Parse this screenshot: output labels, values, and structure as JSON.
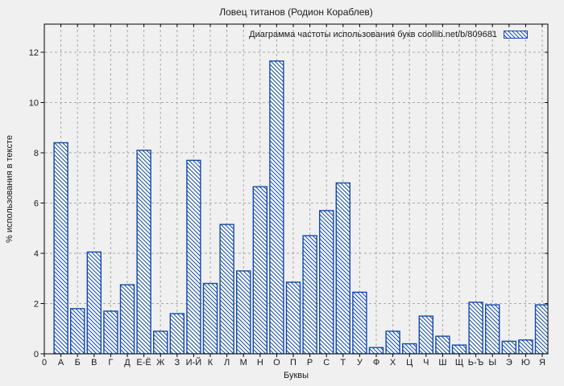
{
  "figure": {
    "background": "#f0f0f0"
  },
  "chart_data": {
    "type": "bar",
    "title": "Ловец титанов (Родион Кораблев)",
    "legend": "Диаграмма частоты использования букв coollib.net/b/809681",
    "xlabel": "Буквы",
    "ylabel": "% использования в тексте",
    "categories": [
      "0",
      "А",
      "Б",
      "В",
      "Г",
      "Д",
      "Е-Ё",
      "Ж",
      "З",
      "И-Й",
      "К",
      "Л",
      "М",
      "Н",
      "О",
      "П",
      "Р",
      "С",
      "Т",
      "У",
      "Ф",
      "Х",
      "Ц",
      "Ч",
      "Ш",
      "Щ",
      "Ь-Ъ",
      "Ы",
      "Э",
      "Ю",
      "Я"
    ],
    "values": [
      0,
      8.4,
      1.8,
      4.05,
      1.7,
      2.75,
      8.1,
      0.9,
      1.6,
      7.7,
      2.8,
      5.15,
      3.3,
      6.65,
      11.65,
      2.85,
      4.7,
      5.7,
      6.8,
      2.45,
      0.25,
      0.9,
      0.4,
      1.5,
      0.7,
      0.35,
      2.05,
      1.95,
      0.5,
      0.55,
      1.95
    ],
    "yticks": [
      0,
      2,
      4,
      6,
      8,
      10,
      12
    ],
    "ylim": [
      0,
      13.1
    ],
    "grid": true,
    "grid_style": "dashed",
    "legend_position": "top-right-inside",
    "hatch": "diagonal-backslash",
    "colors": {
      "bar_stroke": "#1048ae",
      "bar_fill": "#ffffff",
      "grid": "#a8a8a8",
      "axis": "#000000",
      "text": "#1a1a1a",
      "background": "#f0f0f0"
    }
  }
}
